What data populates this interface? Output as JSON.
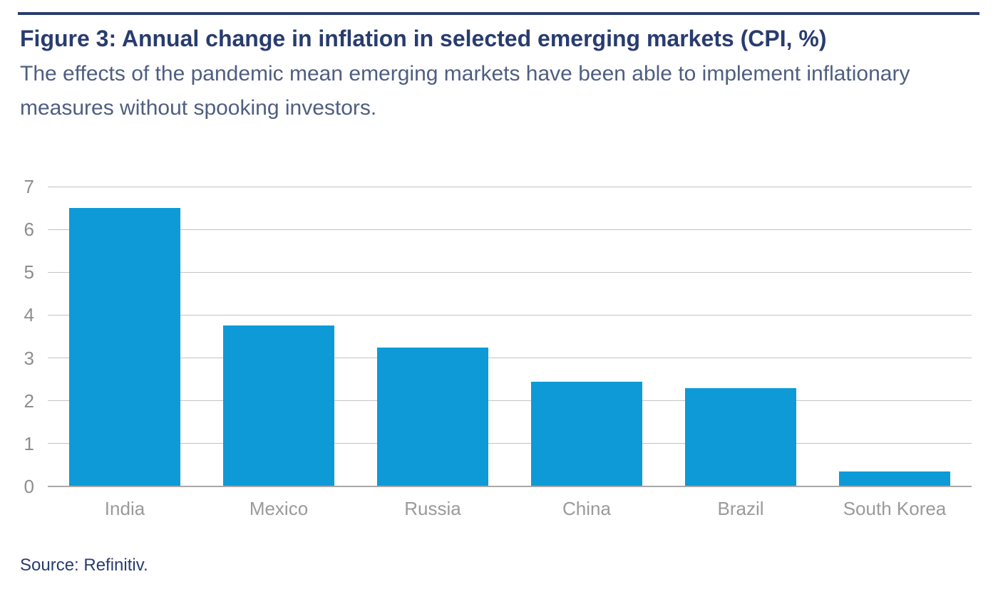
{
  "figure": {
    "title": "Figure 3: Annual change in inflation in selected emerging markets (CPI, %)",
    "subtitle_line1": "The effects of the pandemic mean emerging markets have been able to implement inflationary",
    "subtitle_line2": "measures without spooking investors.",
    "source": "Source: Refinitiv."
  },
  "colors": {
    "accent_navy": "#283c6e",
    "subtitle_slate": "#4f5e80",
    "bar_blue": "#0d9ad7",
    "tick_gray": "#8d8d8d",
    "category_gray": "#9a9a9a",
    "gridline_gray": "#c3c3c3",
    "baseline_gray": "#a8a8a8"
  },
  "chart_data": {
    "type": "bar",
    "title": "Figure 3: Annual change in inflation in selected emerging markets (CPI, %)",
    "subtitle": "The effects of the pandemic mean emerging markets have been able to implement inflationary measures without spooking investors.",
    "categories": [
      "India",
      "Mexico",
      "Russia",
      "China",
      "Brazil",
      "South Korea"
    ],
    "values": [
      6.5,
      3.75,
      3.25,
      2.45,
      2.3,
      0.35
    ],
    "xlabel": "",
    "ylabel": "",
    "ylim": [
      0,
      7
    ],
    "yticks": [
      0,
      1,
      2,
      3,
      4,
      5,
      6,
      7
    ],
    "grid": true,
    "legend": false,
    "bar_color": "#0d9ad7",
    "source": "Source: Refinitiv."
  }
}
